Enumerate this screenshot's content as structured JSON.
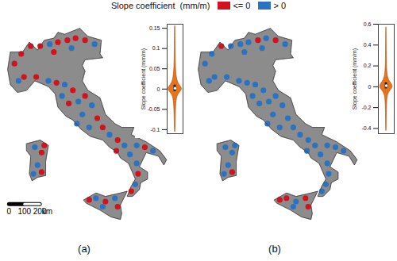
{
  "shared_legend": {
    "title": "Slope coefficient  (mm/m)",
    "categories": [
      "<= 0",
      "> 0"
    ],
    "colors": [
      "#d2121f",
      "#2b72c0"
    ]
  },
  "chart_data": [
    {
      "type": "map",
      "panel_label": "(a)",
      "patches": {
        "lon": [
          7.3,
          7.8,
          8.5,
          9.2,
          9.9,
          10.5,
          11.2,
          11.8,
          12.5,
          13.2,
          11.5,
          10.2,
          8.0,
          7.6,
          8.9,
          9.8,
          10.4,
          11.0,
          11.6,
          10.8,
          11.3,
          12.0,
          12.5,
          13.0,
          12.3,
          13.4,
          11.9,
          12.8,
          13.8,
          14.3,
          14.9,
          15.4,
          14.8,
          15.8,
          16.3,
          16.9,
          17.5,
          16.3,
          16.4,
          16.2,
          15.9,
          13.3,
          14.0,
          14.7,
          14.9,
          13.8,
          12.8,
          8.8,
          9.3,
          9.0,
          9.3,
          8.7,
          9.5
        ],
        "lat": [
          45.3,
          45.8,
          46.2,
          46.2,
          46.3,
          46.4,
          46.5,
          46.6,
          46.5,
          46.3,
          46.1,
          45.9,
          44.6,
          44.4,
          44.6,
          44.4,
          44.3,
          44.2,
          43.9,
          43.6,
          43.2,
          43.3,
          43.6,
          43.1,
          42.6,
          42.4,
          42.1,
          41.9,
          41.9,
          41.5,
          41.2,
          40.9,
          40.6,
          40.4,
          40.9,
          40.8,
          40.6,
          39.9,
          39.3,
          38.7,
          38.3,
          37.9,
          37.7,
          37.9,
          37.4,
          37.4,
          37.8,
          40.8,
          40.5,
          39.8,
          39.4,
          39.3,
          40.9
        ],
        "class": [
          0,
          0,
          0,
          0,
          1,
          0,
          0,
          0,
          0,
          1,
          1,
          0,
          0,
          1,
          0,
          1,
          0,
          1,
          0,
          1,
          0,
          1,
          0,
          1,
          1,
          0,
          1,
          1,
          0,
          1,
          0,
          1,
          0,
          1,
          1,
          0,
          1,
          1,
          0,
          1,
          0,
          1,
          0,
          1,
          0,
          1,
          0,
          1,
          0,
          1,
          0,
          1,
          0
        ]
      },
      "scale_bar": {
        "ticks": [
          0,
          100,
          200
        ],
        "unit": "km"
      },
      "inset": {
        "type": "violin",
        "y_label": "Slope coefficient (mm/m)",
        "ylim": [
          -0.11,
          0.16
        ],
        "yticks": [
          -0.1,
          -0.05,
          0,
          0.05,
          0.1,
          0.15
        ],
        "y": [
          -0.105,
          -0.1,
          -0.05,
          -0.02,
          -0.01,
          0,
          0.01,
          0.02,
          0.05,
          0.1,
          0.15,
          0.155
        ],
        "density": [
          0.02,
          0.05,
          0.08,
          0.2,
          0.5,
          1,
          0.55,
          0.25,
          0.08,
          0.05,
          0.03,
          0.02
        ],
        "quartiles": [
          -0.006,
          0.01
        ],
        "median": 0.002
      }
    },
    {
      "type": "map",
      "panel_label": "(b)",
      "patches": {
        "lon": [
          7.3,
          7.8,
          8.5,
          9.2,
          9.9,
          10.5,
          11.2,
          11.8,
          12.5,
          13.2,
          11.5,
          10.2,
          8.0,
          7.6,
          8.9,
          9.8,
          10.4,
          11.0,
          11.6,
          10.8,
          11.3,
          12.0,
          12.5,
          13.0,
          12.3,
          13.4,
          11.9,
          12.8,
          13.8,
          14.3,
          14.9,
          15.4,
          14.8,
          15.8,
          16.3,
          16.9,
          17.5,
          16.3,
          16.4,
          16.2,
          15.9,
          13.3,
          14.0,
          14.7,
          14.9,
          13.8,
          12.8,
          8.8,
          9.3,
          9.0,
          9.3,
          8.7,
          9.5
        ],
        "lat": [
          45.3,
          45.8,
          46.2,
          46.2,
          46.3,
          46.4,
          46.5,
          46.6,
          46.5,
          46.3,
          46.1,
          45.9,
          44.6,
          44.4,
          44.6,
          44.4,
          44.3,
          44.2,
          43.9,
          43.6,
          43.2,
          43.3,
          43.6,
          43.1,
          42.6,
          42.4,
          42.1,
          41.9,
          41.9,
          41.5,
          41.2,
          40.9,
          40.6,
          40.4,
          40.9,
          40.8,
          40.6,
          39.9,
          39.3,
          38.7,
          38.3,
          37.9,
          37.7,
          37.9,
          37.4,
          37.4,
          37.8,
          40.8,
          40.5,
          39.8,
          39.4,
          39.3,
          40.9
        ],
        "class": [
          1,
          1,
          0,
          1,
          1,
          1,
          0,
          1,
          0,
          1,
          1,
          1,
          1,
          1,
          1,
          1,
          1,
          1,
          1,
          1,
          1,
          1,
          1,
          1,
          1,
          1,
          1,
          1,
          1,
          1,
          1,
          1,
          1,
          1,
          1,
          1,
          1,
          1,
          1,
          1,
          1,
          0,
          1,
          0,
          0,
          1,
          0,
          1,
          1,
          1,
          0,
          1,
          1
        ]
      },
      "inset": {
        "type": "violin",
        "y_label": "Slope coefficient (mm/m)",
        "ylim": [
          -0.45,
          0.6
        ],
        "yticks": [
          -0.4,
          -0.2,
          0,
          0.2,
          0.4,
          0.6
        ],
        "y": [
          -0.42,
          -0.4,
          -0.2,
          -0.1,
          -0.05,
          0,
          0.05,
          0.1,
          0.2,
          0.4,
          0.55,
          0.57
        ],
        "density": [
          0.02,
          0.03,
          0.06,
          0.12,
          0.3,
          1,
          0.4,
          0.15,
          0.06,
          0.04,
          0.02,
          0.01
        ],
        "quartiles": [
          -0.02,
          0.04
        ],
        "median": 0.01
      }
    }
  ]
}
